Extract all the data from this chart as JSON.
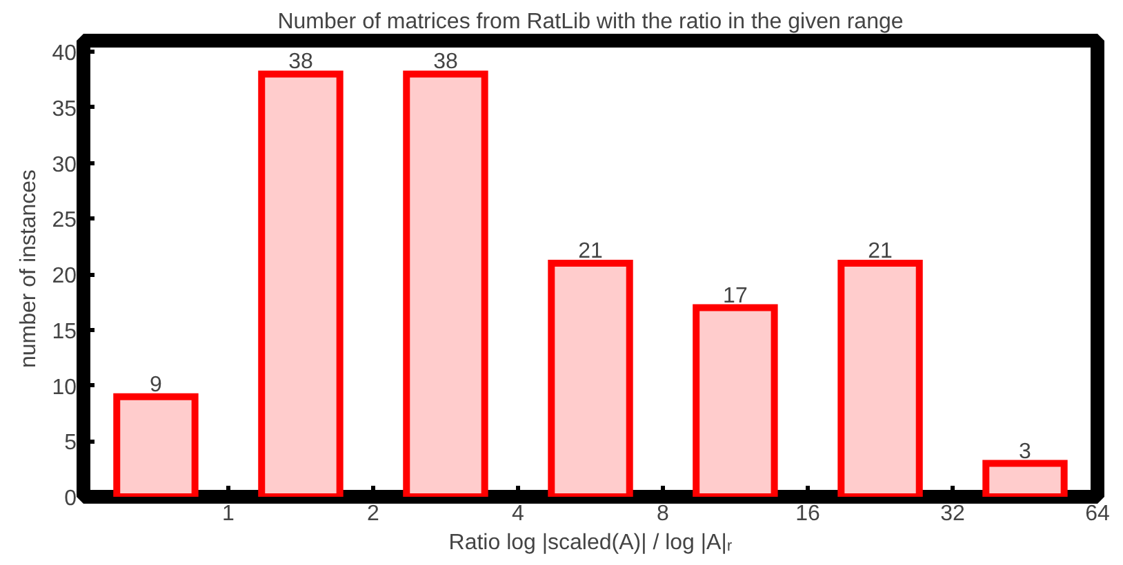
{
  "chart_data": {
    "type": "bar",
    "title": "Number of matrices from RatLib with the ratio in the given range",
    "xlabel": "Ratio log |scaled(A)| / log |A|ᵣ",
    "ylabel": "number of instances",
    "x": [
      0.707,
      1.414,
      2.828,
      5.657,
      11.31,
      22.63,
      45.25
    ],
    "series": [
      {
        "color": "#ff0000",
        "values": [
          9,
          38,
          38,
          21,
          17,
          21,
          3
        ]
      }
    ],
    "log": "x",
    "xlim": [
      0.5,
      64
    ],
    "xticks": [
      1,
      2,
      4,
      8,
      16,
      32,
      64
    ],
    "ylim": [
      0,
      41
    ],
    "yticks": [
      0,
      5,
      10,
      15,
      20,
      25,
      30,
      35,
      40
    ],
    "data_labels": true,
    "grid": false
  }
}
